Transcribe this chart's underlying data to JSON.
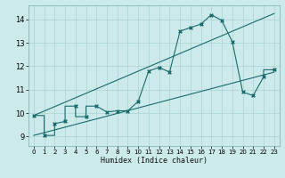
{
  "xlabel": "Humidex (Indice chaleur)",
  "xlim": [
    -0.5,
    23.5
  ],
  "ylim": [
    8.6,
    14.6
  ],
  "xticks": [
    0,
    1,
    2,
    3,
    4,
    5,
    6,
    7,
    8,
    9,
    10,
    11,
    12,
    13,
    14,
    15,
    16,
    17,
    18,
    19,
    20,
    21,
    22,
    23
  ],
  "yticks": [
    9,
    10,
    11,
    12,
    13,
    14
  ],
  "bg_color": "#cceaea",
  "line_color": "#1a6b6b",
  "grid_color": "#aad4d4",
  "data_line_x": [
    0,
    1,
    1,
    2,
    2,
    3,
    3,
    4,
    4,
    5,
    5,
    6,
    7,
    7,
    8,
    9,
    10,
    11,
    12,
    13,
    14,
    15,
    16,
    17,
    18,
    19,
    20,
    20,
    21,
    22,
    22,
    23
  ],
  "data_line_y": [
    9.9,
    9.9,
    9.05,
    9.05,
    9.55,
    9.65,
    10.3,
    10.3,
    9.85,
    9.85,
    10.3,
    10.3,
    10.05,
    10.05,
    10.1,
    10.1,
    10.5,
    11.8,
    11.95,
    11.75,
    13.5,
    13.65,
    13.8,
    14.2,
    13.95,
    13.05,
    10.9,
    10.9,
    10.75,
    11.55,
    11.85,
    11.85
  ],
  "upper_line_x": [
    0,
    23
  ],
  "upper_line_y": [
    9.9,
    14.25
  ],
  "lower_line_x": [
    0,
    23
  ],
  "lower_line_y": [
    9.05,
    11.75
  ],
  "marker_x": [
    0,
    1,
    2,
    3,
    4,
    5,
    6,
    7,
    8,
    9,
    10,
    11,
    12,
    13,
    14,
    15,
    16,
    17,
    18,
    19,
    20,
    21,
    22,
    23
  ],
  "marker_y": [
    9.9,
    9.05,
    9.55,
    9.65,
    10.3,
    9.85,
    10.3,
    10.05,
    10.1,
    10.1,
    10.5,
    11.8,
    11.95,
    11.75,
    13.5,
    13.65,
    13.8,
    14.2,
    13.95,
    13.05,
    10.9,
    10.75,
    11.55,
    11.85
  ]
}
